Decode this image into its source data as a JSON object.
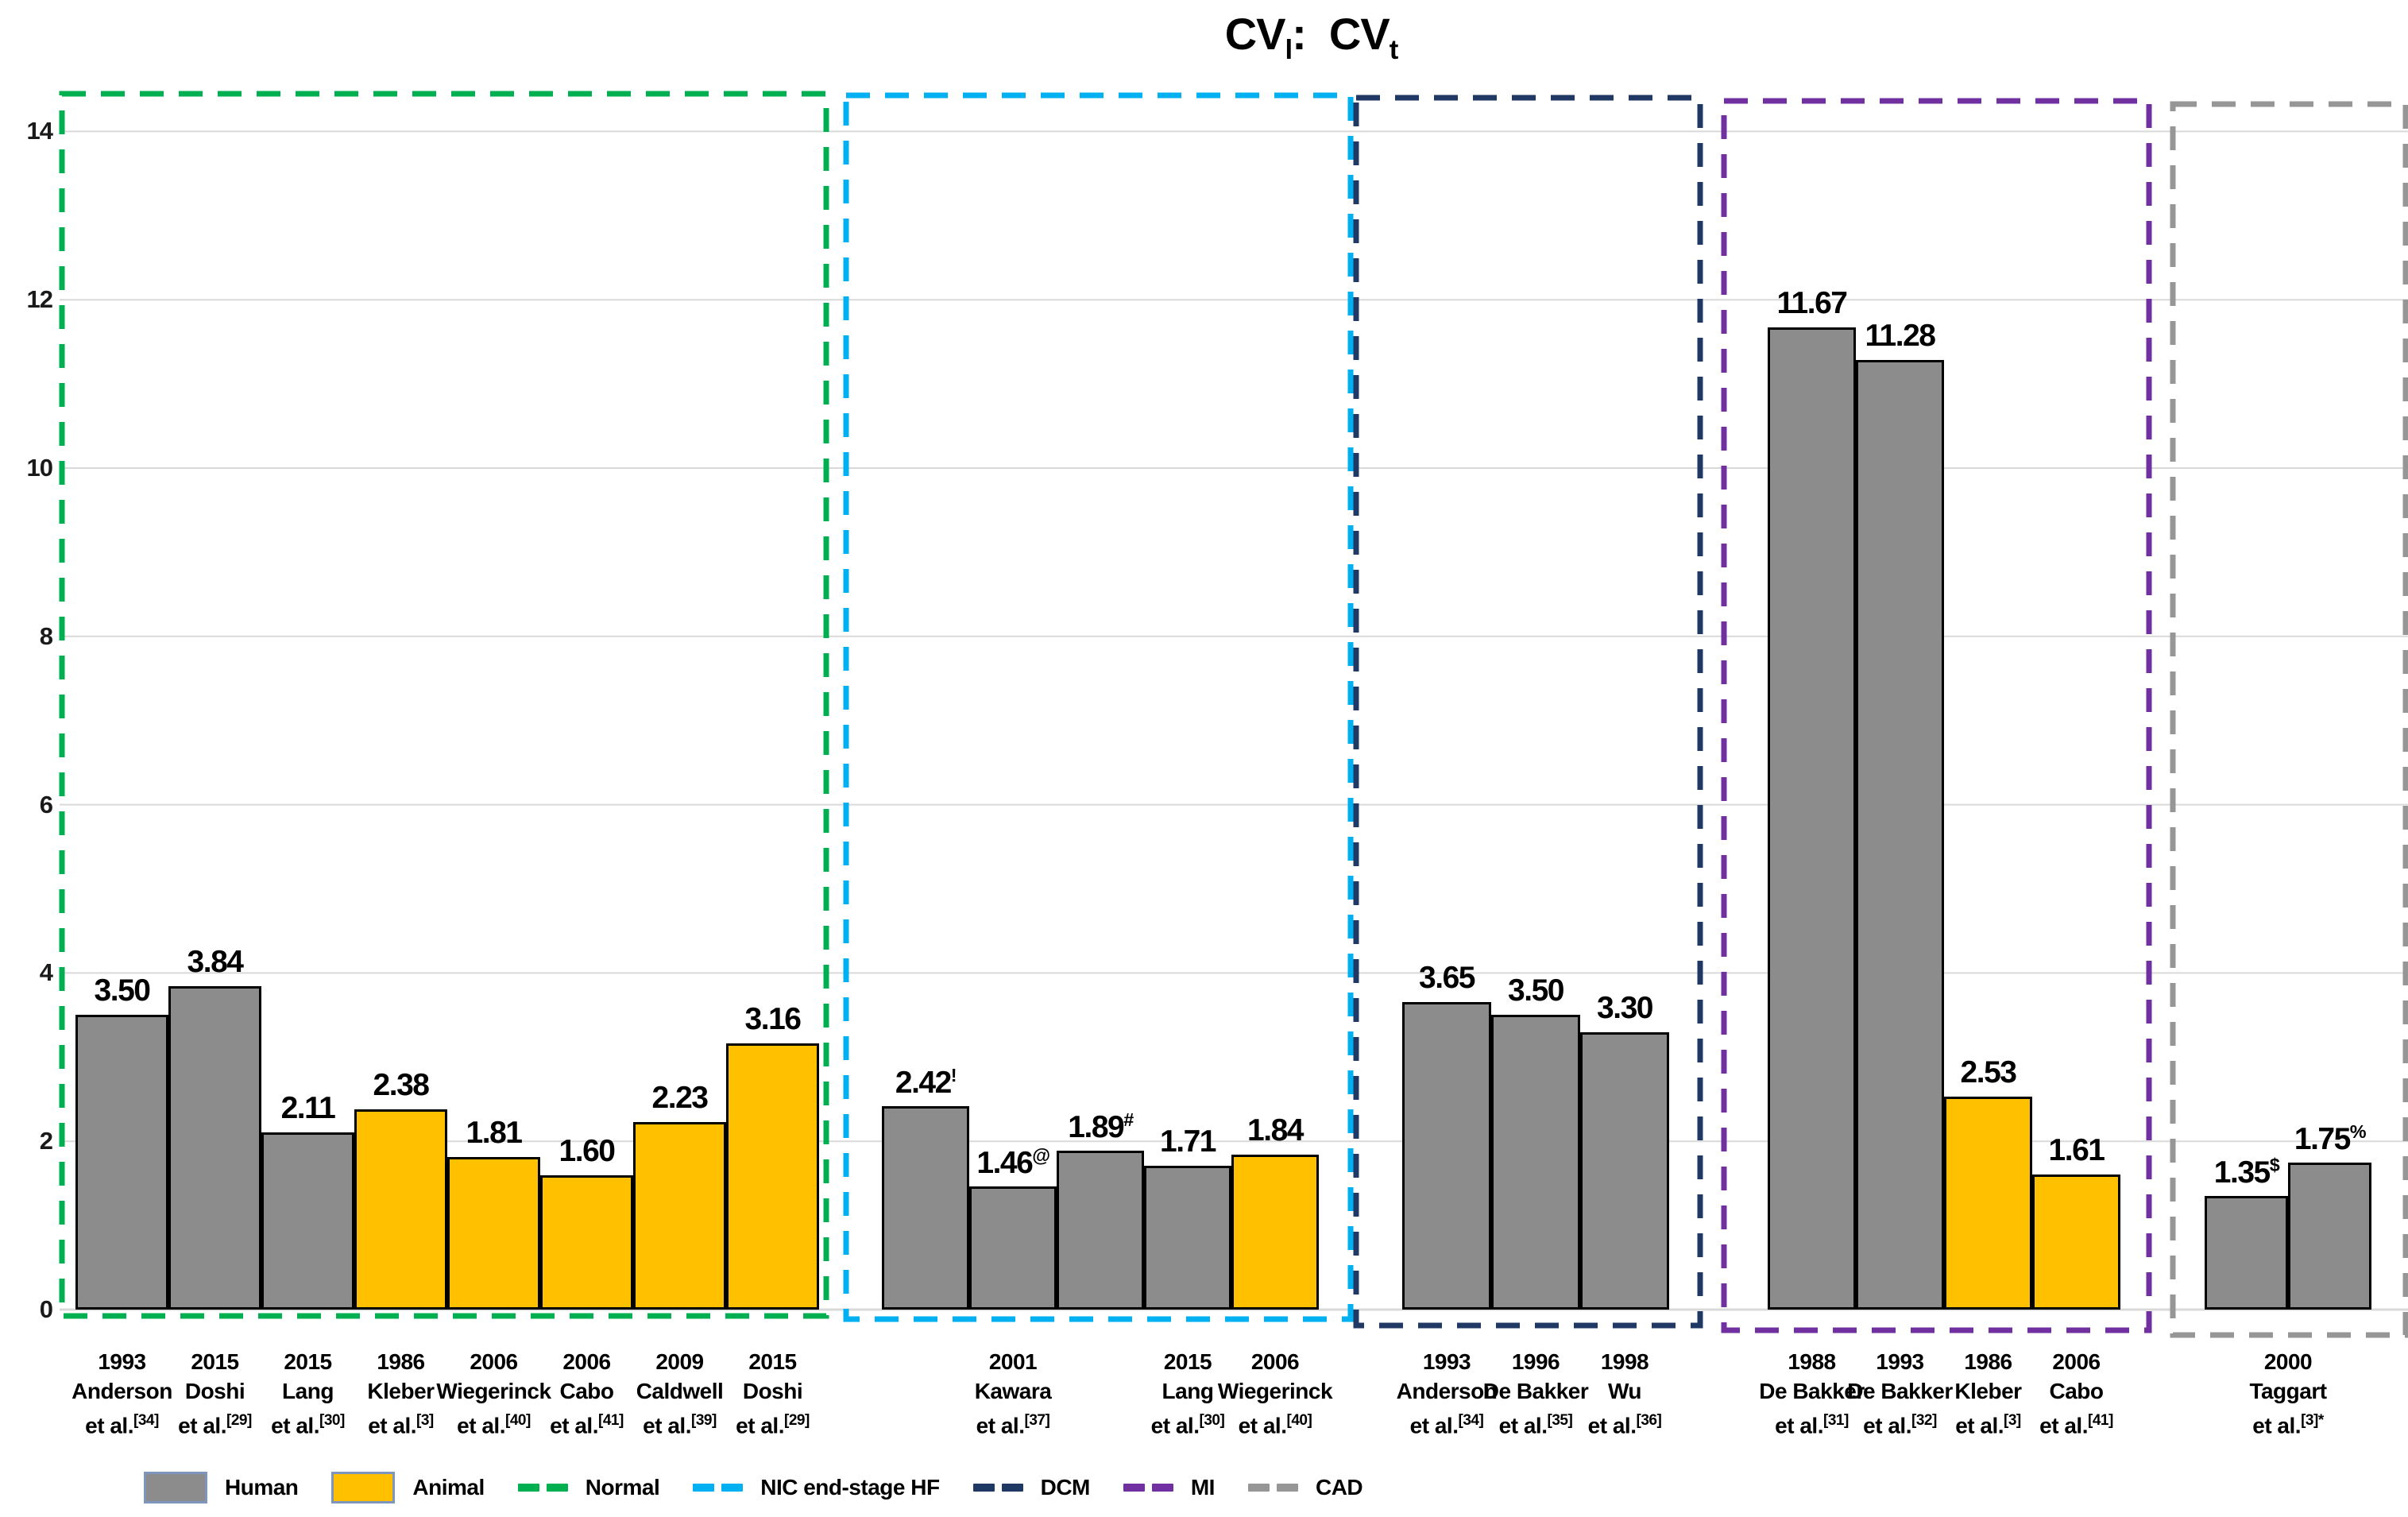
{
  "title": {
    "parts": [
      {
        "t": "CV"
      },
      {
        "t": "l",
        "sub": true
      },
      {
        "t": ":  CV"
      },
      {
        "t": "t",
        "sub": true
      }
    ],
    "plain": "CVl: CVt"
  },
  "colors": {
    "human_bar": "#8C8C8C",
    "animal_bar": "#FFC000",
    "bar_outline": "#000000",
    "gridline": "#D9D9D9",
    "legend_box_border": "#7E96BE",
    "normal_box": "#00B050",
    "nic_box": "#00B0F0",
    "dcm_box": "#1F3864",
    "mi_box": "#7030A0",
    "cad_box": "#969696"
  },
  "y_axis": {
    "ticks": [
      "0",
      "2",
      "4",
      "6",
      "8",
      "10",
      "12",
      "14"
    ],
    "min": 0,
    "max": 14
  },
  "chart_data": {
    "type": "bar",
    "title": "CVl: CVt",
    "xlabel": "",
    "ylabel": "",
    "ylim": [
      0,
      14
    ],
    "grid": "horizontal",
    "legend_position": "bottom",
    "series_colors": {
      "Human": "#8C8C8C",
      "Animal": "#FFC000"
    },
    "groups": [
      {
        "name": "Normal",
        "box_color": "#00B050",
        "bars": [
          {
            "value": 3.5,
            "display": "3.50",
            "sup": "",
            "type": "Human"
          },
          {
            "value": 3.84,
            "display": "3.84",
            "sup": "",
            "type": "Human"
          },
          {
            "value": 2.11,
            "display": "2.11",
            "sup": "",
            "type": "Human"
          },
          {
            "value": 2.38,
            "display": "2.38",
            "sup": "",
            "type": "Animal"
          },
          {
            "value": 1.81,
            "display": "1.81",
            "sup": "",
            "type": "Animal"
          },
          {
            "value": 1.6,
            "display": "1.60",
            "sup": "",
            "type": "Animal"
          },
          {
            "value": 2.23,
            "display": "2.23",
            "sup": "",
            "type": "Animal"
          },
          {
            "value": 3.16,
            "display": "3.16",
            "sup": "",
            "type": "Animal"
          }
        ],
        "xlabels": [
          {
            "anchor": [
              0,
              0
            ],
            "year": "1993",
            "author": "Anderson",
            "etal": "et al.",
            "ref": "[34]"
          },
          {
            "anchor": [
              1,
              1
            ],
            "year": "2015",
            "author": "Doshi",
            "etal": "et al.",
            "ref": "[29]"
          },
          {
            "anchor": [
              2,
              2
            ],
            "year": "2015",
            "author": "Lang",
            "etal": "et al.",
            "ref": "[30]"
          },
          {
            "anchor": [
              3,
              3
            ],
            "year": "1986",
            "author": "Kleber",
            "etal": "et al.",
            "ref": "[3]"
          },
          {
            "anchor": [
              4,
              4
            ],
            "year": "2006",
            "author": "Wiegerinck",
            "etal": "et al.",
            "ref": "[40]"
          },
          {
            "anchor": [
              5,
              5
            ],
            "year": "2006",
            "author": "Cabo",
            "etal": "et al.",
            "ref": "[41]"
          },
          {
            "anchor": [
              6,
              6
            ],
            "year": "2009",
            "author": "Caldwell",
            "etal": "et al.",
            "ref": "[39]"
          },
          {
            "anchor": [
              7,
              7
            ],
            "year": "2015",
            "author": "Doshi",
            "etal": "et al.",
            "ref": "[29]"
          }
        ]
      },
      {
        "name": "NIC end-stage HF",
        "box_color": "#00B0F0",
        "bars": [
          {
            "value": 2.42,
            "display": "2.42",
            "sup": "!",
            "type": "Human"
          },
          {
            "value": 1.46,
            "display": "1.46",
            "sup": "@",
            "type": "Human"
          },
          {
            "value": 1.89,
            "display": "1.89",
            "sup": "#",
            "type": "Human"
          },
          {
            "value": 1.71,
            "display": "1.71",
            "sup": "",
            "type": "Human"
          },
          {
            "value": 1.84,
            "display": "1.84",
            "sup": "",
            "type": "Animal"
          }
        ],
        "xlabels": [
          {
            "anchor": [
              0,
              2
            ],
            "year": "2001",
            "author": "Kawara",
            "etal": "et al.",
            "ref": "[37]"
          },
          {
            "anchor": [
              3,
              3
            ],
            "year": "2015",
            "author": "Lang",
            "etal": "et al.",
            "ref": "[30]"
          },
          {
            "anchor": [
              4,
              4
            ],
            "year": "2006",
            "author": "Wiegerinck",
            "etal": "et al.",
            "ref": "[40]"
          }
        ]
      },
      {
        "name": "DCM",
        "box_color": "#1F3864",
        "bars": [
          {
            "value": 3.65,
            "display": "3.65",
            "sup": "",
            "type": "Human"
          },
          {
            "value": 3.5,
            "display": "3.50",
            "sup": "",
            "type": "Human"
          },
          {
            "value": 3.3,
            "display": "3.30",
            "sup": "",
            "type": "Human"
          }
        ],
        "xlabels": [
          {
            "anchor": [
              0,
              0
            ],
            "year": "1993",
            "author": "Anderson",
            "etal": "et al.",
            "ref": "[34]"
          },
          {
            "anchor": [
              1,
              1
            ],
            "year": "1996",
            "author": "De Bakker",
            "etal": "et al.",
            "ref": "[35]"
          },
          {
            "anchor": [
              2,
              2
            ],
            "year": "1998",
            "author": "Wu",
            "etal": "et al.",
            "ref": "[36]"
          }
        ]
      },
      {
        "name": "MI",
        "box_color": "#7030A0",
        "bars": [
          {
            "value": 11.67,
            "display": "11.67",
            "sup": "",
            "type": "Human"
          },
          {
            "value": 11.28,
            "display": "11.28",
            "sup": "",
            "type": "Human"
          },
          {
            "value": 2.53,
            "display": "2.53",
            "sup": "",
            "type": "Animal"
          },
          {
            "value": 1.61,
            "display": "1.61",
            "sup": "",
            "type": "Animal"
          }
        ],
        "xlabels": [
          {
            "anchor": [
              0,
              0
            ],
            "year": "1988",
            "author": "De Bakker",
            "etal": "et al.",
            "ref": "[31]"
          },
          {
            "anchor": [
              1,
              1
            ],
            "year": "1993",
            "author": "De Bakker",
            "etal": "et al.",
            "ref": "[32]"
          },
          {
            "anchor": [
              2,
              2
            ],
            "year": "1986",
            "author": "Kleber",
            "etal": "et al.",
            "ref": "[3]"
          },
          {
            "anchor": [
              3,
              3
            ],
            "year": "2006",
            "author": "Cabo",
            "etal": "et al.",
            "ref": "[41]"
          }
        ]
      },
      {
        "name": "CAD",
        "box_color": "#969696",
        "bars": [
          {
            "value": 1.35,
            "display": "1.35",
            "sup": "$",
            "type": "Human"
          },
          {
            "value": 1.75,
            "display": "1.75",
            "sup": "%",
            "type": "Human"
          }
        ],
        "xlabels": [
          {
            "anchor": [
              0,
              1
            ],
            "year": "2000",
            "author": "Taggart",
            "etal": "et al.",
            "ref": "[3]*"
          }
        ]
      }
    ]
  },
  "legend": [
    {
      "kind": "box",
      "color": "#8C8C8C",
      "label": "Human"
    },
    {
      "kind": "box",
      "color": "#FFC000",
      "label": "Animal"
    },
    {
      "kind": "dash",
      "color": "#00B050",
      "label": "Normal"
    },
    {
      "kind": "dash",
      "color": "#00B0F0",
      "label": "NIC end-stage HF"
    },
    {
      "kind": "dash",
      "color": "#1F3864",
      "label": "DCM"
    },
    {
      "kind": "dash",
      "color": "#7030A0",
      "label": "MI"
    },
    {
      "kind": "dash",
      "color": "#969696",
      "label": "CAD"
    }
  ]
}
